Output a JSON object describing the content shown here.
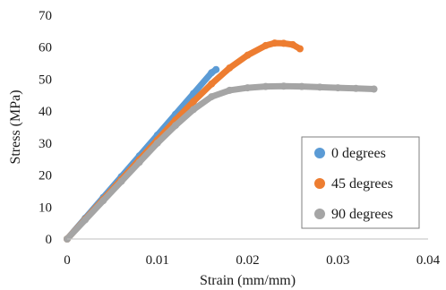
{
  "chart_data": {
    "type": "scatter",
    "title": "",
    "xlabel": "Strain (mm/mm)",
    "ylabel": "Stress (MPa)",
    "xlim": [
      0,
      0.04
    ],
    "ylim": [
      0,
      70
    ],
    "xticks": [
      0,
      0.01,
      0.02,
      0.03,
      0.04
    ],
    "xtick_labels": [
      "0",
      "0.01",
      "0.02",
      "0.03",
      "0.04"
    ],
    "yticks": [
      0,
      10,
      20,
      30,
      40,
      50,
      60,
      70
    ],
    "ytick_labels": [
      "0",
      "10",
      "20",
      "30",
      "40",
      "50",
      "60",
      "70"
    ],
    "grid": false,
    "legend_position": "bottom-right",
    "series": [
      {
        "name": "0 degrees",
        "color": "#5B9BD5",
        "x": [
          0,
          0.002,
          0.004,
          0.006,
          0.008,
          0.01,
          0.012,
          0.014,
          0.016,
          0.0165
        ],
        "y": [
          0,
          6.5,
          13,
          19.5,
          26,
          32.5,
          39,
          45.5,
          52,
          53
        ]
      },
      {
        "name": "45 degrees",
        "color": "#ED7D31",
        "x": [
          0,
          0.002,
          0.004,
          0.006,
          0.008,
          0.01,
          0.012,
          0.014,
          0.016,
          0.018,
          0.02,
          0.022,
          0.023,
          0.024,
          0.025,
          0.0258
        ],
        "y": [
          0,
          6.2,
          12.4,
          18.6,
          24.8,
          31,
          37.2,
          43,
          48.5,
          53.5,
          57.5,
          60.5,
          61.3,
          61.2,
          60.8,
          59.5
        ]
      },
      {
        "name": "90 degrees",
        "color": "#A5A5A5",
        "x": [
          0,
          0.002,
          0.004,
          0.006,
          0.008,
          0.01,
          0.012,
          0.014,
          0.016,
          0.018,
          0.02,
          0.022,
          0.024,
          0.026,
          0.028,
          0.03,
          0.032,
          0.034
        ],
        "y": [
          0,
          6,
          12,
          18,
          24,
          30,
          35.5,
          40.5,
          44.5,
          46.5,
          47.3,
          47.7,
          47.8,
          47.7,
          47.5,
          47.3,
          47.1,
          46.9
        ]
      }
    ]
  }
}
